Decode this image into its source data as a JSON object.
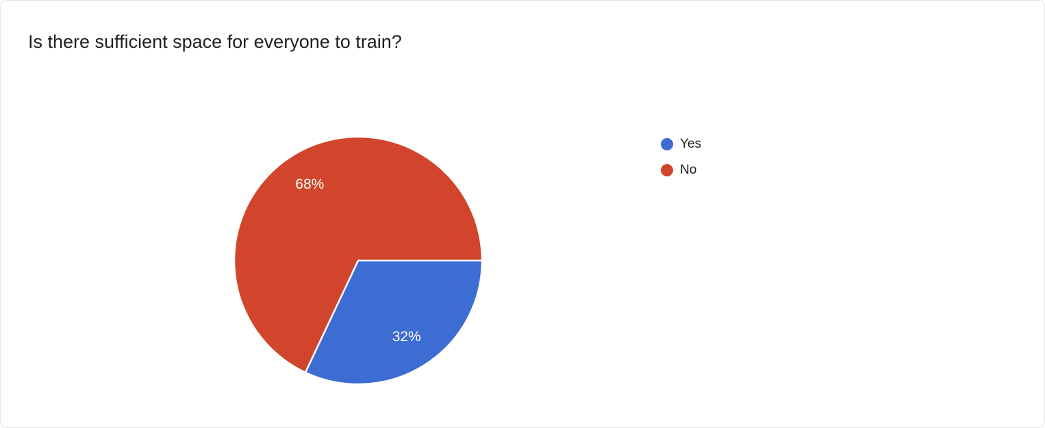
{
  "chart_data": {
    "type": "pie",
    "title": "Is there sufficient space for everyone to train?",
    "categories": [
      "Yes",
      "No"
    ],
    "values": [
      32,
      68
    ],
    "unit": "%",
    "slice_labels": [
      "32%",
      "68%"
    ],
    "colors": [
      "#3d6cd2",
      "#d0452b"
    ],
    "slice_label_color": "#ffffff",
    "slice_border_color": "#ffffff",
    "start_angle_deg": 0,
    "direction": "clockwise",
    "legend_position": "right",
    "legend": [
      {
        "label": "Yes",
        "color": "#3d6cd2"
      },
      {
        "label": "No",
        "color": "#d0452b"
      }
    ]
  }
}
